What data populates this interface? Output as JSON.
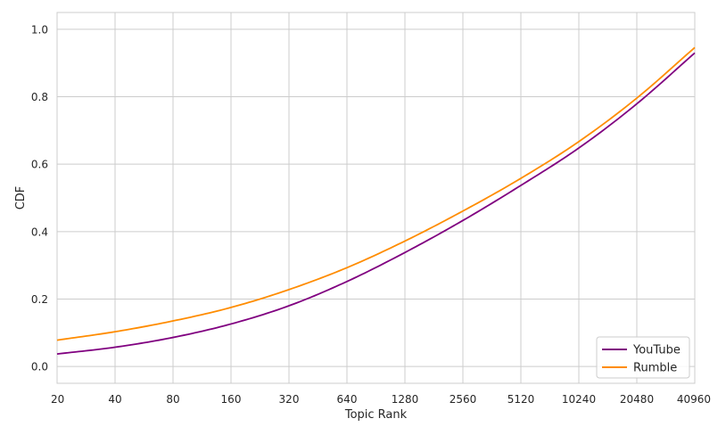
{
  "chart_data": {
    "type": "line",
    "xlabel": "Topic Rank",
    "ylabel": "CDF",
    "x_scale": "log2",
    "xlim": [
      20,
      40960
    ],
    "ylim": [
      -0.05,
      1.05
    ],
    "x_ticks": [
      20,
      40,
      80,
      160,
      320,
      640,
      1280,
      2560,
      5120,
      10240,
      20480,
      40960
    ],
    "y_ticks": [
      0.0,
      0.2,
      0.4,
      0.6,
      0.8,
      1.0
    ],
    "y_tick_labels": [
      "0.0",
      "0.2",
      "0.4",
      "0.6",
      "0.8",
      "1.0"
    ],
    "grid": true,
    "legend_position": "bottom-right",
    "x": [
      20,
      40,
      80,
      160,
      320,
      640,
      1280,
      2560,
      5120,
      10240,
      20480,
      40960
    ],
    "series": [
      {
        "name": "YouTube",
        "color": "#800080",
        "values": [
          0.037,
          0.057,
          0.086,
          0.126,
          0.18,
          0.252,
          0.338,
          0.433,
          0.537,
          0.648,
          0.779,
          0.93
        ]
      },
      {
        "name": "Rumble",
        "color": "#ff8c00",
        "values": [
          0.078,
          0.103,
          0.135,
          0.175,
          0.228,
          0.293,
          0.372,
          0.461,
          0.558,
          0.667,
          0.796,
          0.946
        ]
      }
    ]
  }
}
